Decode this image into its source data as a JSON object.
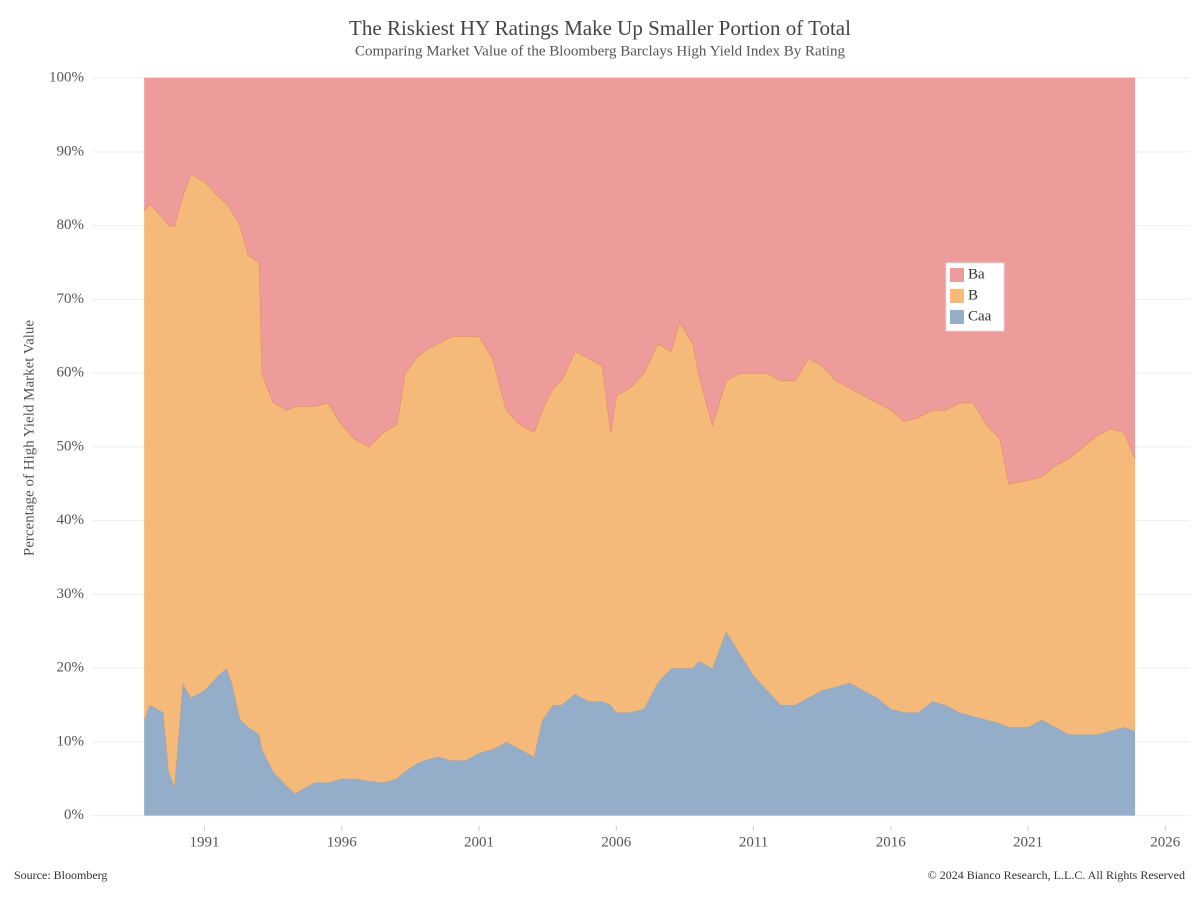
{
  "chart_data": {
    "type": "stacked_area",
    "title": "The Riskiest HY Ratings Make Up Smaller Portion of Total",
    "subtitle": "Comparing Market Value of the Bloomberg Barclays High Yield Index By Rating",
    "y_label": "Percentage of High Yield Market Value",
    "source": "Source: Bloomberg",
    "copyright": "© 2024 Bianco Research, L.L.C. All Rights Reserved",
    "x": [
      1988.8,
      1989.0,
      1989.5,
      1989.7,
      1989.9,
      1990.2,
      1990.5,
      1991.0,
      1991.5,
      1991.8,
      1992.0,
      1992.3,
      1992.6,
      1993.0,
      1993.1,
      1993.5,
      1994.0,
      1994.3,
      1995.0,
      1995.5,
      1996.0,
      1996.5,
      1997.0,
      1997.5,
      1998.0,
      1998.3,
      1998.7,
      1999.0,
      1999.5,
      2000.0,
      2000.5,
      2001.0,
      2001.5,
      2002.0,
      2002.5,
      2003.0,
      2003.3,
      2003.7,
      2004.0,
      2004.5,
      2005.0,
      2005.5,
      2005.8,
      2006.0,
      2006.5,
      2007.0,
      2007.5,
      2008.0,
      2008.3,
      2008.8,
      2009.0,
      2009.5,
      2010.0,
      2010.5,
      2011.0,
      2011.5,
      2012.0,
      2012.5,
      2013.0,
      2013.5,
      2014.0,
      2014.5,
      2015.0,
      2015.5,
      2016.0,
      2016.5,
      2017.0,
      2017.5,
      2018.0,
      2018.5,
      2019.0,
      2019.5,
      2020.0,
      2020.3,
      2021.0,
      2021.5,
      2022.0,
      2022.5,
      2023.0,
      2023.5,
      2024.0,
      2024.5,
      2024.9
    ],
    "series": [
      {
        "name": "Caa",
        "color": "#94aec9",
        "values": [
          13,
          15,
          14,
          6,
          4,
          18,
          16,
          17,
          19,
          20,
          18,
          13,
          12,
          11,
          9,
          6,
          4,
          3,
          4.5,
          4.5,
          5,
          5,
          4.7,
          4.5,
          5,
          6,
          7,
          7.5,
          8,
          7.5,
          7.5,
          8.5,
          9,
          10,
          9,
          8,
          13,
          15,
          15,
          16.5,
          15.5,
          15.5,
          15,
          14,
          14,
          14.5,
          18,
          20,
          20,
          20,
          21,
          20,
          25,
          22,
          19,
          17,
          15,
          15,
          16,
          17,
          17.5,
          18,
          17,
          16,
          14.5,
          14,
          14,
          15.5,
          15,
          14,
          13.5,
          13,
          12.5,
          12,
          12,
          13,
          12,
          11,
          11,
          11,
          11.5,
          12,
          11.5
        ]
      },
      {
        "name": "B",
        "color": "#f5b97a",
        "values": [
          69,
          68,
          67,
          74,
          76,
          66,
          71,
          69,
          65,
          63,
          64,
          67,
          64,
          64,
          51,
          50,
          51,
          52.5,
          51,
          51.5,
          48,
          46,
          45.3,
          47.5,
          48,
          54,
          55,
          55.5,
          56,
          57.5,
          57.5,
          56.5,
          53,
          45,
          44,
          44,
          42,
          43,
          44,
          46.5,
          46.5,
          45.5,
          37,
          43,
          44,
          45.5,
          46,
          43,
          47,
          44,
          39,
          33,
          34,
          38,
          41,
          43,
          44,
          44,
          46,
          44,
          41.5,
          40,
          40,
          40,
          40.5,
          39.5,
          40,
          39.5,
          40,
          42,
          42.5,
          40,
          38.5,
          33,
          33.5,
          33,
          35.5,
          37.5,
          39,
          40.5,
          41,
          40,
          37
        ]
      },
      {
        "name": "Ba",
        "color": "#ed9b9b",
        "values": [
          18,
          17,
          19,
          20,
          20,
          16,
          13,
          14,
          16,
          17,
          18,
          20,
          24,
          25,
          40,
          44,
          45,
          44.5,
          44.5,
          44,
          47,
          49,
          50,
          48,
          47,
          40,
          38,
          37,
          36,
          35,
          35,
          35,
          38,
          45,
          47,
          48,
          45,
          42,
          41,
          37,
          38,
          39,
          48,
          43,
          42,
          40,
          36,
          37,
          33,
          36,
          40,
          47,
          41,
          40,
          40,
          40,
          41,
          41,
          38,
          39,
          41,
          42,
          43,
          44,
          45,
          46.5,
          46,
          45,
          45,
          44,
          44,
          47,
          49,
          55,
          54.5,
          54,
          52.5,
          51.5,
          50,
          48.5,
          47.5,
          48,
          51.5
        ]
      }
    ],
    "xlim": [
      1986.9,
      2026.9
    ],
    "xticks": [
      1991,
      1996,
      2001,
      2006,
      2011,
      2016,
      2021,
      2026
    ],
    "ylim": [
      -1.4,
      101.1
    ],
    "yticks": [
      {
        "value": 0,
        "label": "0%"
      },
      {
        "value": 10,
        "label": "10%"
      },
      {
        "value": 20,
        "label": "20%"
      },
      {
        "value": 30,
        "label": "30%"
      },
      {
        "value": 40,
        "label": "40%"
      },
      {
        "value": 50,
        "label": "50%"
      },
      {
        "value": 60,
        "label": "60%"
      },
      {
        "value": 70,
        "label": "70%"
      },
      {
        "value": 80,
        "label": "80%"
      },
      {
        "value": 90,
        "label": "90%"
      },
      {
        "value": 100,
        "label": "100%"
      }
    ],
    "grid": true
  }
}
